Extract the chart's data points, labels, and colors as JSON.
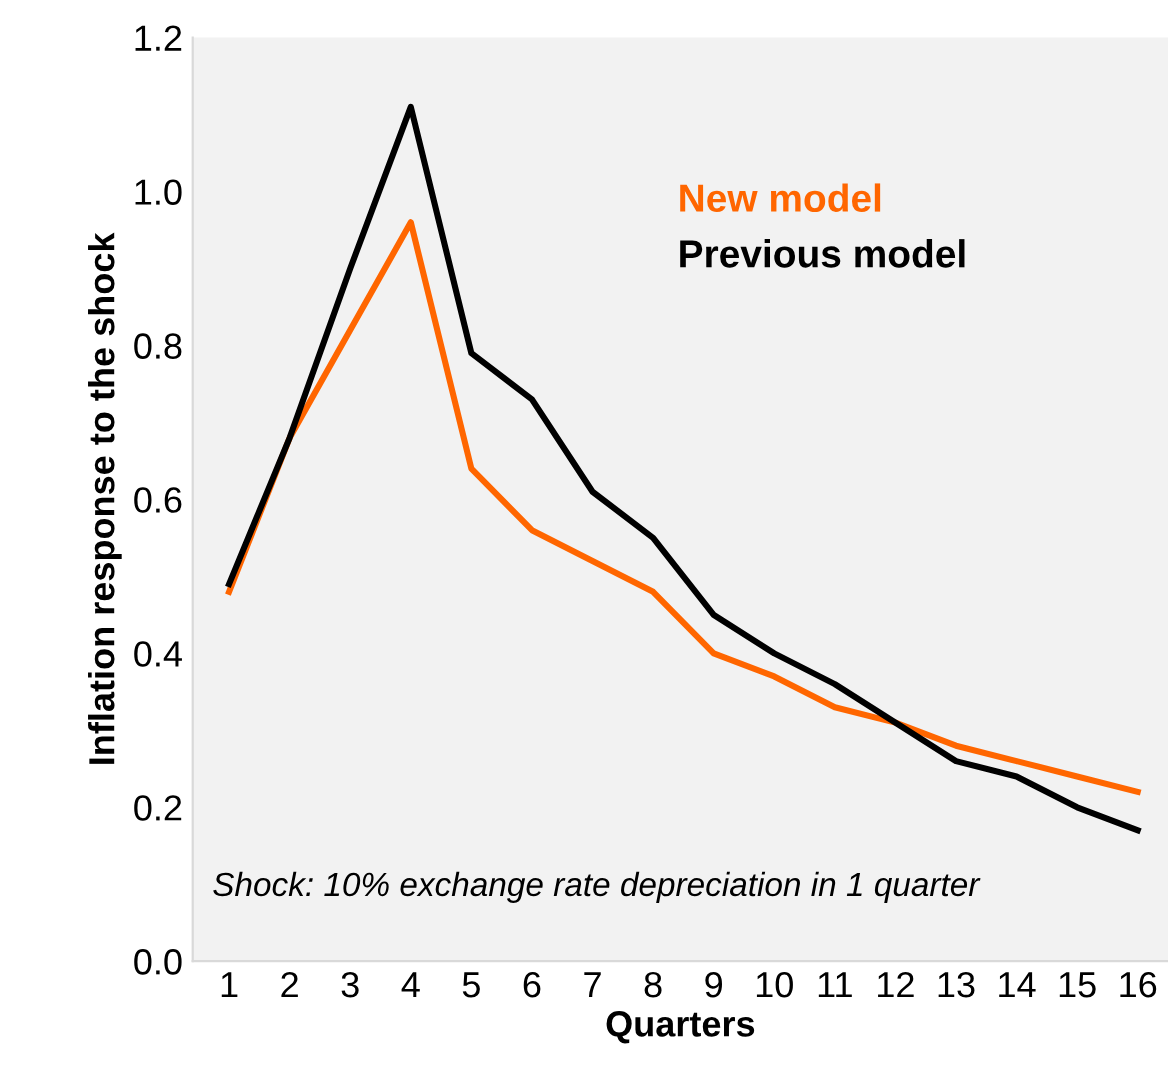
{
  "chart_data": {
    "type": "line",
    "xlabel": "Quarters",
    "ylabel": "Inflation response to the shock",
    "categories": [
      "1",
      "2",
      "3",
      "4",
      "5",
      "6",
      "7",
      "8",
      "9",
      "10",
      "11",
      "12",
      "13",
      "14",
      "15",
      "16"
    ],
    "series": [
      {
        "name": "New model",
        "color": "#ff6600",
        "values": [
          0.48,
          0.68,
          0.82,
          0.96,
          0.64,
          0.56,
          0.52,
          0.48,
          0.4,
          0.37,
          0.33,
          0.31,
          0.28,
          0.26,
          0.24,
          0.22
        ]
      },
      {
        "name": "Previous model",
        "color": "#000000",
        "values": [
          0.49,
          0.68,
          0.9,
          1.11,
          0.79,
          0.73,
          0.61,
          0.55,
          0.45,
          0.4,
          0.36,
          0.31,
          0.26,
          0.24,
          0.2,
          0.17
        ]
      }
    ],
    "ylim": [
      0,
      1.2
    ],
    "yticks": [
      {
        "value": 0,
        "label": "0.0"
      },
      0.2,
      0.4,
      0.6,
      0.8,
      {
        "value": 1,
        "label": "1.0"
      },
      1.2
    ],
    "legend": "top right",
    "grid": false,
    "marker": "none",
    "line_style": "solid",
    "annotations": [
      "Shock: 10% exchange rate depreciation in 1 quarter"
    ]
  }
}
